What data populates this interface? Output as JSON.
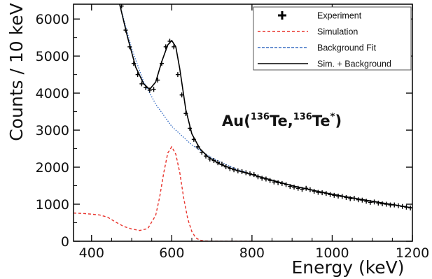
{
  "chart_data": {
    "type": "line",
    "title": "",
    "xlabel": "Energy (keV)",
    "ylabel": "Counts / 10 keV",
    "xlim": [
      355,
      1200
    ],
    "ylim": [
      0,
      6400
    ],
    "xticks": [
      400,
      600,
      800,
      1000,
      1200
    ],
    "yticks": [
      0,
      1000,
      2000,
      3000,
      4000,
      5000,
      6000
    ],
    "grid": false,
    "legend_position": "top-right",
    "annotation": {
      "prefix": "Au(",
      "sup1": "136",
      "mid": "Te,",
      "sup2": "136",
      "suffix": "Te",
      "sup3": "*",
      "close": ")"
    },
    "series": [
      {
        "name": "Experiment",
        "style": "points-with-error",
        "color": "#000000",
        "x": [
          475,
          485,
          495,
          505,
          515,
          525,
          535,
          545,
          555,
          565,
          575,
          585,
          595,
          605,
          615,
          625,
          635,
          645,
          655,
          665,
          675,
          685,
          695,
          705,
          715,
          725,
          735,
          745,
          755,
          765,
          775,
          785,
          795,
          805,
          815,
          825,
          835,
          845,
          855,
          865,
          875,
          885,
          895,
          905,
          915,
          925,
          935,
          945,
          955,
          965,
          975,
          985,
          995,
          1005,
          1015,
          1025,
          1035,
          1045,
          1055,
          1065,
          1075,
          1085,
          1095,
          1105,
          1115,
          1125,
          1135,
          1145,
          1155,
          1165,
          1175,
          1185,
          1195
        ],
        "y": [
          6350,
          5700,
          5250,
          4800,
          4500,
          4250,
          4150,
          4080,
          4100,
          4350,
          4800,
          5250,
          5400,
          5250,
          4500,
          3950,
          3450,
          3050,
          2750,
          2550,
          2400,
          2300,
          2220,
          2180,
          2120,
          2080,
          2010,
          1960,
          1930,
          1900,
          1880,
          1850,
          1820,
          1800,
          1740,
          1700,
          1680,
          1640,
          1600,
          1580,
          1560,
          1530,
          1480,
          1460,
          1430,
          1400,
          1430,
          1390,
          1350,
          1320,
          1310,
          1290,
          1260,
          1240,
          1220,
          1210,
          1180,
          1150,
          1160,
          1120,
          1110,
          1080,
          1050,
          1060,
          1030,
          1010,
          1000,
          980,
          980,
          960,
          940,
          920,
          900
        ]
      },
      {
        "name": "Simulation",
        "style": "dashed",
        "color": "#e8332c",
        "x": [
          355,
          380,
          400,
          420,
          440,
          460,
          480,
          500,
          520,
          540,
          560,
          570,
          580,
          590,
          600,
          610,
          620,
          630,
          640,
          650,
          660,
          670,
          680,
          700,
          750,
          800
        ],
        "y": [
          760,
          750,
          730,
          710,
          650,
          520,
          400,
          330,
          290,
          340,
          700,
          1200,
          1850,
          2380,
          2550,
          2350,
          1850,
          1150,
          600,
          260,
          90,
          30,
          10,
          0,
          0,
          0
        ]
      },
      {
        "name": "Background Fit",
        "style": "dotted",
        "color": "#3a6fc4",
        "x": [
          470,
          500,
          530,
          560,
          600,
          650,
          700,
          750,
          800,
          850,
          900,
          950,
          1000,
          1050,
          1100,
          1150,
          1200
        ],
        "y": [
          6400,
          5200,
          4300,
          3700,
          3100,
          2600,
          2250,
          2000,
          1800,
          1650,
          1500,
          1380,
          1270,
          1170,
          1080,
          990,
          900
        ]
      },
      {
        "name": "Sim. + Background",
        "style": "solid",
        "color": "#000000",
        "x": [
          470,
          490,
          510,
          530,
          545,
          560,
          575,
          590,
          600,
          610,
          620,
          635,
          650,
          670,
          690,
          720,
          760,
          800,
          850,
          900,
          950,
          1000,
          1050,
          1100,
          1150,
          1200
        ],
        "y": [
          6400,
          5500,
          4700,
          4250,
          4100,
          4300,
          4850,
          5300,
          5420,
          5250,
          4650,
          3550,
          2900,
          2500,
          2280,
          2080,
          1920,
          1800,
          1650,
          1500,
          1380,
          1270,
          1170,
          1080,
          990,
          900
        ]
      }
    ]
  }
}
